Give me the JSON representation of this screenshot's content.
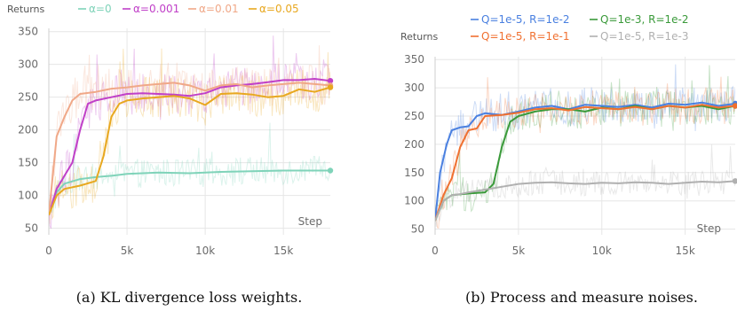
{
  "chart_data": [
    {
      "type": "line",
      "caption": "(a) KL divergence loss weights.",
      "ylabel": "Returns",
      "xlabel": "Step",
      "xlim": [
        0,
        18000
      ],
      "ylim": [
        40,
        355
      ],
      "xticks": [
        0,
        5000,
        10000,
        15000
      ],
      "xtick_labels": [
        "0",
        "5k",
        "10k",
        "15k"
      ],
      "yticks": [
        50,
        100,
        150,
        200,
        250,
        300,
        350
      ],
      "ytick_labels": [
        "50",
        "100",
        "150",
        "200",
        "250",
        "300",
        "350"
      ],
      "grid": true,
      "legend_position": "top",
      "series": [
        {
          "name": "α=0",
          "color": "#7fd3b9",
          "x": [
            0,
            500,
            1000,
            2000,
            3000,
            4000,
            5000,
            7000,
            9000,
            11000,
            13000,
            15000,
            17000,
            18000
          ],
          "y": [
            70,
            105,
            118,
            125,
            128,
            130,
            133,
            135,
            134,
            136,
            137,
            138,
            138,
            138
          ]
        },
        {
          "name": "α=0.001",
          "color": "#c040c8",
          "x": [
            0,
            500,
            1000,
            1500,
            2000,
            2500,
            3000,
            4000,
            5000,
            6000,
            7000,
            8000,
            9000,
            10000,
            11000,
            12000,
            13000,
            14000,
            15000,
            16000,
            17000,
            18000
          ],
          "y": [
            70,
            110,
            130,
            150,
            200,
            240,
            245,
            250,
            255,
            256,
            255,
            254,
            252,
            256,
            265,
            268,
            270,
            273,
            276,
            276,
            278,
            275
          ]
        },
        {
          "name": "α=0.01",
          "color": "#f0a888",
          "x": [
            0,
            500,
            1000,
            1500,
            2000,
            3000,
            4000,
            5000,
            6000,
            7000,
            8000,
            9000,
            10000,
            11000,
            12000,
            13000,
            14000,
            15000,
            16000,
            17000,
            18000
          ],
          "y": [
            70,
            190,
            220,
            245,
            255,
            258,
            263,
            265,
            268,
            270,
            272,
            268,
            260,
            268,
            270,
            265,
            268,
            270,
            272,
            270,
            268
          ]
        },
        {
          "name": "α=0.05",
          "color": "#e8a820",
          "x": [
            0,
            500,
            1000,
            2000,
            3000,
            3500,
            4000,
            4500,
            5000,
            6000,
            7000,
            8000,
            9000,
            10000,
            11000,
            12000,
            13000,
            14000,
            15000,
            16000,
            17000,
            18000
          ],
          "y": [
            70,
            100,
            110,
            115,
            122,
            160,
            220,
            240,
            245,
            248,
            250,
            252,
            248,
            238,
            255,
            256,
            254,
            250,
            252,
            262,
            258,
            265
          ]
        }
      ]
    },
    {
      "type": "line",
      "caption": "(b) Process and measure noises.",
      "ylabel": "Returns",
      "xlabel": "Step",
      "xlim": [
        0,
        18000
      ],
      "ylim": [
        40,
        355
      ],
      "xticks": [
        0,
        5000,
        10000,
        15000
      ],
      "xtick_labels": [
        "0",
        "5k",
        "10k",
        "15k"
      ],
      "yticks": [
        50,
        100,
        150,
        200,
        250,
        300,
        350
      ],
      "ytick_labels": [
        "50",
        "100",
        "150",
        "200",
        "250",
        "300",
        "350"
      ],
      "grid": true,
      "legend_position": "top",
      "series": [
        {
          "name": "Q=1e-5, R=1e-2",
          "color": "#4a80e0",
          "x": [
            0,
            300,
            700,
            1000,
            1500,
            2000,
            2500,
            3000,
            4000,
            5000,
            6000,
            7000,
            8000,
            9000,
            10000,
            11000,
            12000,
            13000,
            14000,
            15000,
            16000,
            17000,
            18000
          ],
          "y": [
            65,
            150,
            200,
            225,
            230,
            232,
            250,
            255,
            252,
            258,
            265,
            268,
            262,
            270,
            268,
            266,
            270,
            265,
            272,
            270,
            274,
            268,
            272
          ]
        },
        {
          "name": "Q=1e-3, R=1e-2",
          "color": "#3a9a3a",
          "x": [
            0,
            500,
            1000,
            2000,
            3000,
            3500,
            4000,
            4500,
            5000,
            6000,
            7000,
            8000,
            9000,
            10000,
            11000,
            12000,
            13000,
            14000,
            15000,
            16000,
            17000,
            18000
          ],
          "y": [
            65,
            100,
            110,
            113,
            115,
            130,
            195,
            240,
            250,
            258,
            262,
            262,
            258,
            265,
            262,
            268,
            262,
            268,
            265,
            268,
            262,
            268
          ]
        },
        {
          "name": "Q=1e-5, R=1e-1",
          "color": "#f07030",
          "x": [
            0,
            500,
            1000,
            1500,
            2000,
            2500,
            3000,
            4000,
            5000,
            6000,
            7000,
            8000,
            9000,
            10000,
            11000,
            12000,
            13000,
            14000,
            15000,
            16000,
            17000,
            18000
          ],
          "y": [
            65,
            110,
            140,
            195,
            225,
            228,
            250,
            252,
            256,
            262,
            264,
            260,
            266,
            264,
            262,
            266,
            262,
            268,
            265,
            270,
            265,
            268
          ]
        },
        {
          "name": "Q=1e-5, R=1e-3",
          "color": "#b0b0b0",
          "x": [
            0,
            500,
            1000,
            1500,
            2000,
            3000,
            4000,
            5000,
            6000,
            7000,
            8000,
            9000,
            10000,
            11000,
            12000,
            13000,
            14000,
            15000,
            16000,
            17000,
            18000
          ],
          "y": [
            65,
            100,
            110,
            112,
            115,
            120,
            125,
            130,
            132,
            133,
            131,
            130,
            132,
            131,
            133,
            132,
            130,
            132,
            134,
            133,
            135
          ]
        }
      ]
    }
  ]
}
